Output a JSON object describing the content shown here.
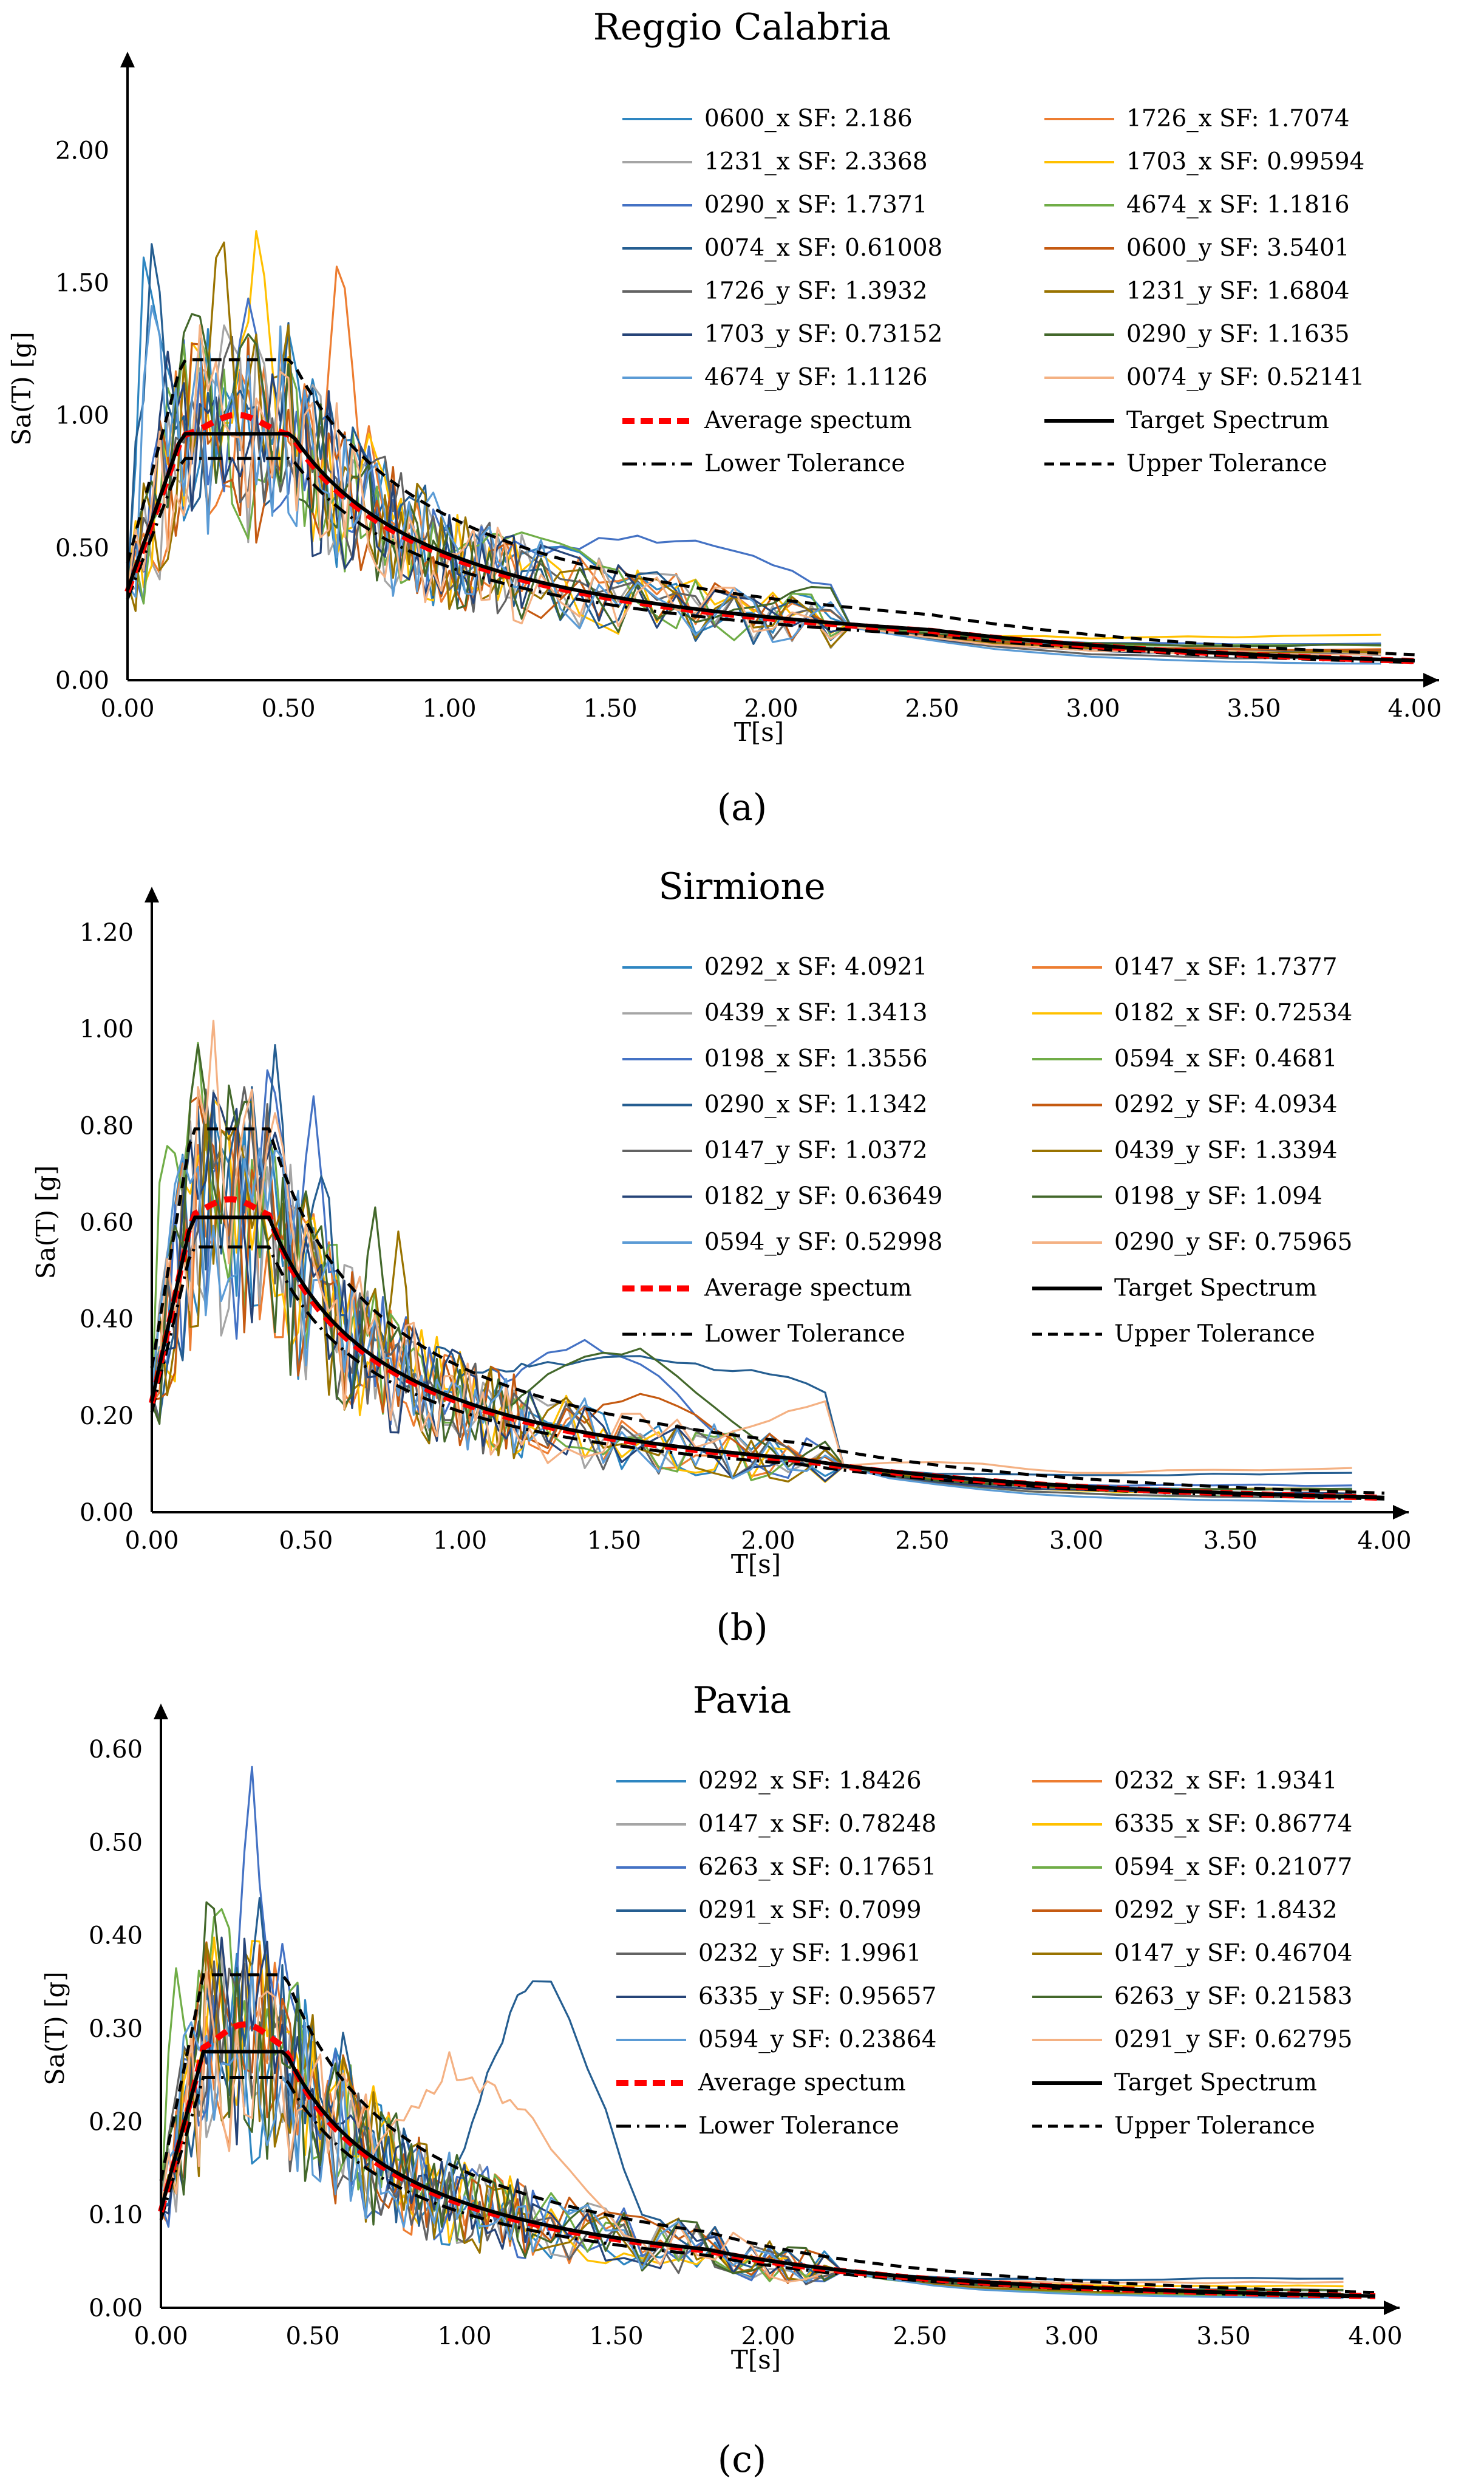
{
  "chart_data": [
    {
      "type": "line",
      "panel_label": "(a)",
      "title": "Reggio Calabria",
      "xlabel": "T[s]",
      "ylabel": "Sa(T) [g]",
      "xlim": [
        0,
        4
      ],
      "ylim": [
        0,
        2.2
      ],
      "xticks": [
        "0.00",
        "0.50",
        "1.00",
        "1.50",
        "2.00",
        "2.50",
        "3.00",
        "3.50",
        "4.00"
      ],
      "yticks": [
        "0.00",
        "0.50",
        "1.00",
        "1.50",
        "2.00"
      ],
      "legend_position": "top-right",
      "target": {
        "name": "Target Spectrum",
        "pga": 0.34,
        "plateau": 0.93,
        "tb": 0.17,
        "tc": 0.51,
        "td": 2.5
      },
      "series": [
        {
          "name": "0600_x SF: 2.186",
          "color": "#2E86C1",
          "peaks": [
            [
              0.07,
              1.72
            ],
            [
              0.12,
              1.2
            ],
            [
              0.3,
              1.1
            ]
          ],
          "tail": 0.14,
          "bump": [
            1.3,
            0.52,
            0.4
          ],
          "seed": 1
        },
        {
          "name": "1726_x SF: 1.7074",
          "color": "#ED7D31",
          "peaks": [
            [
              0.66,
              1.64
            ],
            [
              0.75,
              1.0
            ]
          ],
          "tail": 0.12,
          "bump": null,
          "seed": 2
        },
        {
          "name": "1231_x SF: 2.3368",
          "color": "#A5A5A5",
          "peaks": [
            [
              0.28,
              1.2
            ],
            [
              0.5,
              0.9
            ]
          ],
          "tail": 0.1,
          "bump": null,
          "seed": 3
        },
        {
          "name": "1703_x SF: 0.99594",
          "color": "#FFC000",
          "peaks": [
            [
              0.41,
              1.84
            ],
            [
              0.75,
              1.0
            ]
          ],
          "tail": 0.18,
          "bump": null,
          "seed": 4
        },
        {
          "name": "0290_x SF: 1.7371",
          "color": "#4472C4",
          "peaks": [
            [
              0.38,
              1.49
            ],
            [
              0.6,
              1.0
            ]
          ],
          "tail": 0.15,
          "bump": [
            1.6,
            0.55,
            0.9
          ],
          "seed": 5
        },
        {
          "name": "4674_x SF: 1.1816",
          "color": "#70AD47",
          "peaks": [
            [
              0.17,
              1.3
            ],
            [
              0.5,
              0.85
            ]
          ],
          "tail": 0.14,
          "bump": [
            1.2,
            0.57,
            0.5
          ],
          "seed": 6
        },
        {
          "name": "0074_x SF: 0.61008",
          "color": "#255E91",
          "peaks": [
            [
              0.08,
              1.7
            ],
            [
              0.35,
              1.2
            ]
          ],
          "tail": 0.12,
          "bump": null,
          "seed": 7
        },
        {
          "name": "0600_y SF: 3.5401",
          "color": "#C55A11",
          "peaks": [
            [
              0.22,
              1.3
            ],
            [
              0.5,
              0.95
            ]
          ],
          "tail": 0.12,
          "bump": null,
          "seed": 8
        },
        {
          "name": "1726_y SF: 1.3932",
          "color": "#636363",
          "peaks": [
            [
              0.2,
              1.1
            ],
            [
              0.45,
              0.85
            ]
          ],
          "tail": 0.08,
          "bump": null,
          "seed": 9
        },
        {
          "name": "1231_y SF: 1.6804",
          "color": "#997300",
          "peaks": [
            [
              0.29,
              1.85
            ],
            [
              0.45,
              1.1
            ]
          ],
          "tail": 0.11,
          "bump": null,
          "seed": 10
        },
        {
          "name": "1703_y SF: 0.73152",
          "color": "#264478",
          "peaks": [
            [
              0.12,
              1.25
            ],
            [
              0.4,
              1.0
            ]
          ],
          "tail": 0.1,
          "bump": null,
          "seed": 11
        },
        {
          "name": "0290_y SF: 1.1635",
          "color": "#43682B",
          "peaks": [
            [
              0.2,
              1.56
            ],
            [
              0.5,
              0.9
            ]
          ],
          "tail": 0.14,
          "bump": [
            2.5,
            0.42,
            0.9
          ],
          "seed": 12
        },
        {
          "name": "4674_y SF: 1.1126",
          "color": "#5B9BD5",
          "peaks": [
            [
              0.09,
              1.55
            ],
            [
              0.3,
              0.9
            ]
          ],
          "tail": 0.06,
          "bump": null,
          "seed": 13
        },
        {
          "name": "0074_y SF: 0.52141",
          "color": "#F4B183",
          "peaks": [
            [
              0.3,
              1.0
            ],
            [
              0.5,
              0.7
            ]
          ],
          "tail": 0.1,
          "bump": null,
          "seed": 14
        }
      ],
      "average": {
        "name": "Average spectum",
        "peak": 1.02
      },
      "lower": {
        "name": "Lower Tolerance"
      },
      "upper": {
        "name": "Upper Tolerance"
      }
    },
    {
      "type": "line",
      "panel_label": "(b)",
      "title": "Sirmione",
      "xlabel": "T[s]",
      "ylabel": "Sa(T) [g]",
      "xlim": [
        0,
        4
      ],
      "ylim": [
        0,
        1.2
      ],
      "xticks": [
        "0.00",
        "0.50",
        "1.00",
        "1.50",
        "2.00",
        "2.50",
        "3.00",
        "3.50",
        "4.00"
      ],
      "yticks": [
        "0.00",
        "0.20",
        "0.40",
        "0.60",
        "0.80",
        "1.00",
        "1.20"
      ],
      "legend_position": "top-right",
      "target": {
        "name": "Target Spectrum",
        "pga": 0.23,
        "plateau": 0.61,
        "tb": 0.13,
        "tc": 0.38,
        "td": 2.1
      },
      "series": [
        {
          "name": "0292_x SF: 4.0921",
          "color": "#2E86C1",
          "peaks": [
            [
              0.2,
              0.95
            ],
            [
              0.4,
              0.7
            ]
          ],
          "tail": 0.05,
          "bump": null,
          "seed": 21
        },
        {
          "name": "0147_x SF: 1.7377",
          "color": "#ED7D31",
          "peaks": [
            [
              0.25,
              0.9
            ],
            [
              0.5,
              0.6
            ]
          ],
          "tail": 0.05,
          "bump": null,
          "seed": 22
        },
        {
          "name": "0439_x SF: 1.3413",
          "color": "#A5A5A5",
          "peaks": [
            [
              0.3,
              0.85
            ],
            [
              0.55,
              0.55
            ]
          ],
          "tail": 0.04,
          "bump": null,
          "seed": 23
        },
        {
          "name": "0182_x SF: 0.72534",
          "color": "#FFC000",
          "peaks": [
            [
              0.2,
              0.97
            ],
            [
              0.35,
              0.7
            ]
          ],
          "tail": 0.04,
          "bump": null,
          "seed": 24
        },
        {
          "name": "0198_x SF: 1.3556",
          "color": "#4472C4",
          "peaks": [
            [
              0.38,
              0.99
            ],
            [
              0.52,
              0.9
            ]
          ],
          "tail": 0.06,
          "bump": [
            1.4,
            0.36,
            0.5
          ],
          "seed": 25
        },
        {
          "name": "0594_x SF: 0.4681",
          "color": "#70AD47",
          "peaks": [
            [
              0.06,
              0.87
            ],
            [
              0.15,
              1.09
            ]
          ],
          "tail": 0.03,
          "bump": null,
          "seed": 26
        },
        {
          "name": "0290_x SF: 1.1342",
          "color": "#255E91",
          "peaks": [
            [
              0.4,
              0.98
            ],
            [
              0.55,
              0.8
            ]
          ],
          "tail": 0.09,
          "bump": [
            1.5,
            0.33,
            1.4
          ],
          "seed": 27
        },
        {
          "name": "0292_y SF: 4.0934",
          "color": "#C55A11",
          "peaks": [
            [
              0.18,
              0.9
            ],
            [
              0.4,
              0.6
            ]
          ],
          "tail": 0.05,
          "bump": [
            1.6,
            0.25,
            0.4
          ],
          "seed": 28
        },
        {
          "name": "0147_y SF: 1.0372",
          "color": "#636363",
          "peaks": [
            [
              0.2,
              0.8
            ],
            [
              0.4,
              0.5
            ]
          ],
          "tail": 0.03,
          "bump": null,
          "seed": 29
        },
        {
          "name": "0439_y SF: 1.3394",
          "color": "#997300",
          "peaks": [
            [
              0.25,
              0.9
            ],
            [
              0.8,
              0.59
            ]
          ],
          "tail": 0.05,
          "bump": null,
          "seed": 30
        },
        {
          "name": "0182_y SF: 0.63649",
          "color": "#264478",
          "peaks": [
            [
              0.22,
              0.85
            ],
            [
              0.45,
              0.55
            ]
          ],
          "tail": 0.04,
          "bump": null,
          "seed": 31
        },
        {
          "name": "0198_y SF: 1.094",
          "color": "#43682B",
          "peaks": [
            [
              0.15,
              1.09
            ],
            [
              0.72,
              0.66
            ]
          ],
          "tail": 0.05,
          "bump": [
            1.5,
            0.35,
            0.5
          ],
          "seed": 32
        },
        {
          "name": "0594_y SF: 0.52998",
          "color": "#5B9BD5",
          "peaks": [
            [
              0.1,
              0.85
            ],
            [
              0.3,
              0.6
            ]
          ],
          "tail": 0.02,
          "bump": null,
          "seed": 33
        },
        {
          "name": "0290_y SF: 0.75965",
          "color": "#F4B183",
          "peaks": [
            [
              0.2,
              1.03
            ],
            [
              0.5,
              0.6
            ]
          ],
          "tail": 0.1,
          "bump": [
            2.5,
            0.27,
            0.9
          ],
          "seed": 34
        }
      ],
      "average": {
        "name": "Average spectum",
        "peak": 0.66
      },
      "lower": {
        "name": "Lower Tolerance"
      },
      "upper": {
        "name": "Upper Tolerance"
      }
    },
    {
      "type": "line",
      "panel_label": "(c)",
      "title": "Pavia",
      "xlabel": "T[s]",
      "ylabel": "Sa(T) [g]",
      "xlim": [
        0,
        4
      ],
      "ylim": [
        0,
        0.6
      ],
      "xticks": [
        "0.00",
        "0.50",
        "1.00",
        "1.50",
        "2.00",
        "2.50",
        "3.00",
        "3.50",
        "4.00"
      ],
      "yticks": [
        "0.00",
        "0.10",
        "0.20",
        "0.30",
        "0.40",
        "0.50",
        "0.60"
      ],
      "legend_position": "top-right",
      "target": {
        "name": "Target Spectrum",
        "pga": 0.105,
        "plateau": 0.275,
        "tb": 0.14,
        "tc": 0.41,
        "td": 1.8
      },
      "series": [
        {
          "name": "0292_x SF: 1.8426",
          "color": "#2E86C1",
          "peaks": [
            [
              0.2,
              0.37
            ],
            [
              0.4,
              0.27
            ]
          ],
          "tail": 0.02,
          "bump": null,
          "seed": 41
        },
        {
          "name": "0232_x SF: 1.9341",
          "color": "#ED7D31",
          "peaks": [
            [
              0.3,
              0.34
            ],
            [
              0.6,
              0.25
            ]
          ],
          "tail": 0.02,
          "bump": null,
          "seed": 42
        },
        {
          "name": "0147_x SF: 0.78248",
          "color": "#A5A5A5",
          "peaks": [
            [
              0.25,
              0.33
            ],
            [
              0.5,
              0.22
            ]
          ],
          "tail": 0.015,
          "bump": null,
          "seed": 43
        },
        {
          "name": "6335_x SF: 0.86774",
          "color": "#FFC000",
          "peaks": [
            [
              0.3,
              0.4
            ],
            [
              0.7,
              0.25
            ]
          ],
          "tail": 0.025,
          "bump": null,
          "seed": 44
        },
        {
          "name": "6263_x SF: 0.17651",
          "color": "#4472C4",
          "peaks": [
            [
              0.3,
              0.6
            ],
            [
              0.4,
              0.4
            ]
          ],
          "tail": 0.02,
          "bump": null,
          "seed": 45
        },
        {
          "name": "0594_x SF: 0.21077",
          "color": "#70AD47",
          "peaks": [
            [
              0.05,
              0.39
            ],
            [
              0.2,
              0.5
            ]
          ],
          "tail": 0.012,
          "bump": null,
          "seed": 46
        },
        {
          "name": "0291_x SF: 0.7099",
          "color": "#255E91",
          "peaks": [
            [
              0.32,
              0.45
            ],
            [
              0.6,
              0.3
            ]
          ],
          "tail": 0.035,
          "bump": [
            1.25,
            0.36,
            0.3
          ],
          "seed": 47
        },
        {
          "name": "0292_y SF: 1.8432",
          "color": "#C55A11",
          "peaks": [
            [
              0.2,
              0.35
            ],
            [
              0.4,
              0.25
            ]
          ],
          "tail": 0.02,
          "bump": [
            1.5,
            0.1,
            0.4
          ],
          "seed": 48
        },
        {
          "name": "0232_y SF: 1.9961",
          "color": "#636363",
          "peaks": [
            [
              0.25,
              0.35
            ],
            [
              0.5,
              0.2
            ]
          ],
          "tail": 0.02,
          "bump": null,
          "seed": 49
        },
        {
          "name": "0147_y SF: 0.46704",
          "color": "#997300",
          "peaks": [
            [
              0.28,
              0.36
            ],
            [
              0.55,
              0.22
            ]
          ],
          "tail": 0.015,
          "bump": null,
          "seed": 50
        },
        {
          "name": "6335_y SF: 0.95657",
          "color": "#264478",
          "peaks": [
            [
              0.2,
              0.42
            ],
            [
              0.45,
              0.28
            ]
          ],
          "tail": 0.02,
          "bump": null,
          "seed": 51
        },
        {
          "name": "6263_y SF: 0.21583",
          "color": "#43682B",
          "peaks": [
            [
              0.16,
              0.49
            ],
            [
              0.4,
              0.3
            ]
          ],
          "tail": 0.02,
          "bump": null,
          "seed": 52
        },
        {
          "name": "0594_y SF: 0.23864",
          "color": "#5B9BD5",
          "peaks": [
            [
              0.1,
              0.35
            ],
            [
              0.3,
              0.25
            ]
          ],
          "tail": 0.01,
          "bump": null,
          "seed": 53
        },
        {
          "name": "0291_y SF: 0.62795",
          "color": "#F4B183",
          "peaks": [
            [
              0.35,
              0.39
            ],
            [
              0.95,
              0.28
            ]
          ],
          "tail": 0.03,
          "bump": [
            1.0,
            0.25,
            0.5
          ],
          "seed": 54
        }
      ],
      "average": {
        "name": "Average spectum",
        "peak": 0.31
      },
      "lower": {
        "name": "Lower Tolerance"
      },
      "upper": {
        "name": "Upper Tolerance"
      }
    }
  ]
}
